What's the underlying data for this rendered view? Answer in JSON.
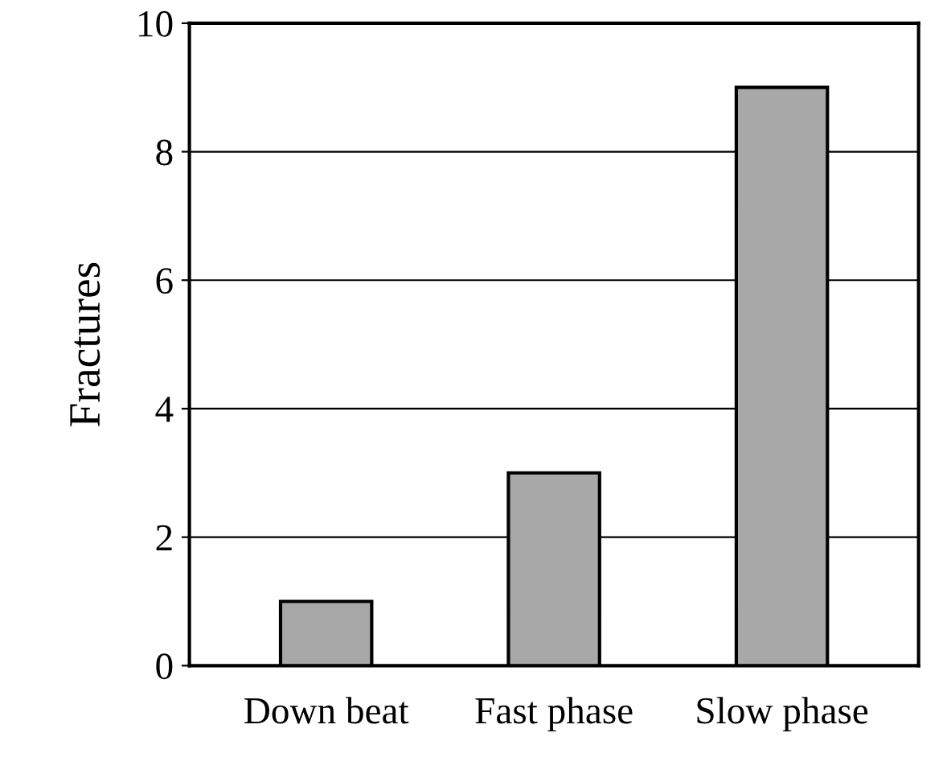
{
  "chart_data": {
    "type": "bar",
    "ylabel": "Fractures",
    "categories": [
      "Down beat",
      "Fast phase",
      "Slow phase"
    ],
    "values": [
      1,
      3,
      9
    ],
    "color": "#a8a8a8",
    "ylim": [
      0,
      10
    ],
    "yticks": [
      0,
      2,
      4,
      6,
      8,
      10
    ],
    "grid": "y"
  }
}
